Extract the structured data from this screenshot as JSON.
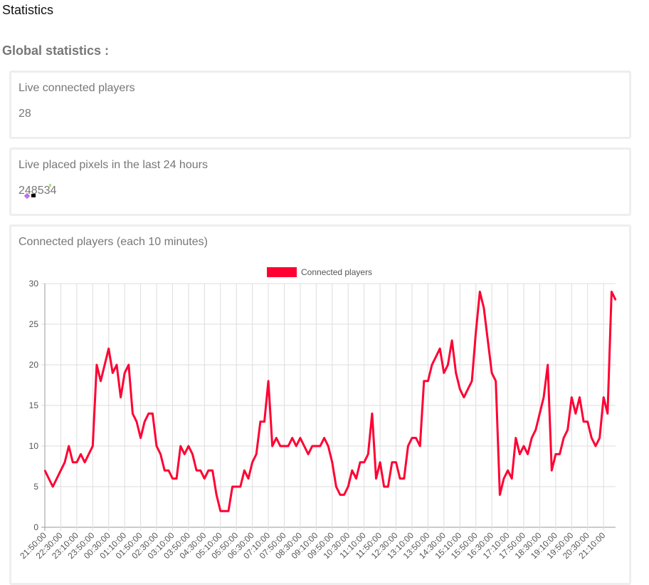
{
  "page": {
    "title": "Statistics",
    "subtitle": "Global statistics :"
  },
  "cards": [
    {
      "label": "Live connected players",
      "value": "28"
    },
    {
      "label": "Live placed pixels in the last 24 hours",
      "value": "248534"
    },
    {
      "label": "Connected players (each 10 minutes)"
    }
  ],
  "colors": {
    "series": "#ff0033",
    "grid": "#dddddd",
    "axis": "#888888"
  },
  "chart_data": {
    "type": "line",
    "title": "Connected players (each 10 minutes)",
    "legend": {
      "label": "Connected players",
      "position": "top"
    },
    "x_start": "21:50:00",
    "x_interval_minutes": 10,
    "tick_labels": [
      "21:50:00",
      "22:30:00",
      "23:10:00",
      "23:50:00",
      "00:30:00",
      "01:10:00",
      "01:50:00",
      "02:30:00",
      "03:10:00",
      "03:50:00",
      "04:30:00",
      "05:10:00",
      "05:50:00",
      "06:30:00",
      "07:10:00",
      "07:50:00",
      "08:30:00",
      "09:10:00",
      "09:50:00",
      "10:30:00",
      "11:10:00",
      "11:50:00",
      "12:30:00",
      "13:10:00",
      "13:50:00",
      "14:30:00",
      "15:10:00",
      "15:50:00",
      "16:30:00",
      "17:10:00",
      "17:50:00",
      "18:30:00",
      "19:10:00",
      "19:50:00",
      "20:30:00",
      "21:10:00"
    ],
    "y_ticks": [
      "0",
      "5",
      "10",
      "15",
      "20",
      "25",
      "30"
    ],
    "ylim": [
      0,
      30
    ],
    "grid": true,
    "values": [
      7,
      6,
      5,
      6,
      7,
      8,
      10,
      8,
      8,
      9,
      8,
      9,
      10,
      20,
      18,
      20,
      22,
      19,
      20,
      16,
      19,
      20,
      14,
      13,
      11,
      13,
      14,
      14,
      10,
      9,
      7,
      7,
      6,
      6,
      10,
      9,
      10,
      9,
      7,
      7,
      6,
      7,
      7,
      4,
      2,
      2,
      2,
      5,
      5,
      5,
      7,
      6,
      8,
      9,
      13,
      13,
      18,
      10,
      11,
      10,
      10,
      10,
      11,
      10,
      11,
      10,
      9,
      10,
      10,
      10,
      11,
      10,
      8,
      5,
      4,
      4,
      5,
      7,
      6,
      8,
      8,
      9,
      14,
      6,
      8,
      5,
      5,
      8,
      8,
      6,
      6,
      10,
      11,
      11,
      10,
      18,
      18,
      20,
      21,
      22,
      19,
      20,
      23,
      19,
      17,
      16,
      17,
      18,
      24,
      29,
      27,
      23,
      19,
      18,
      4,
      6,
      7,
      6,
      11,
      9,
      10,
      9,
      11,
      12,
      14,
      16,
      20,
      7,
      9,
      9,
      11,
      12,
      16,
      14,
      16,
      13,
      13,
      11,
      10,
      11,
      16,
      14,
      29,
      28
    ]
  }
}
